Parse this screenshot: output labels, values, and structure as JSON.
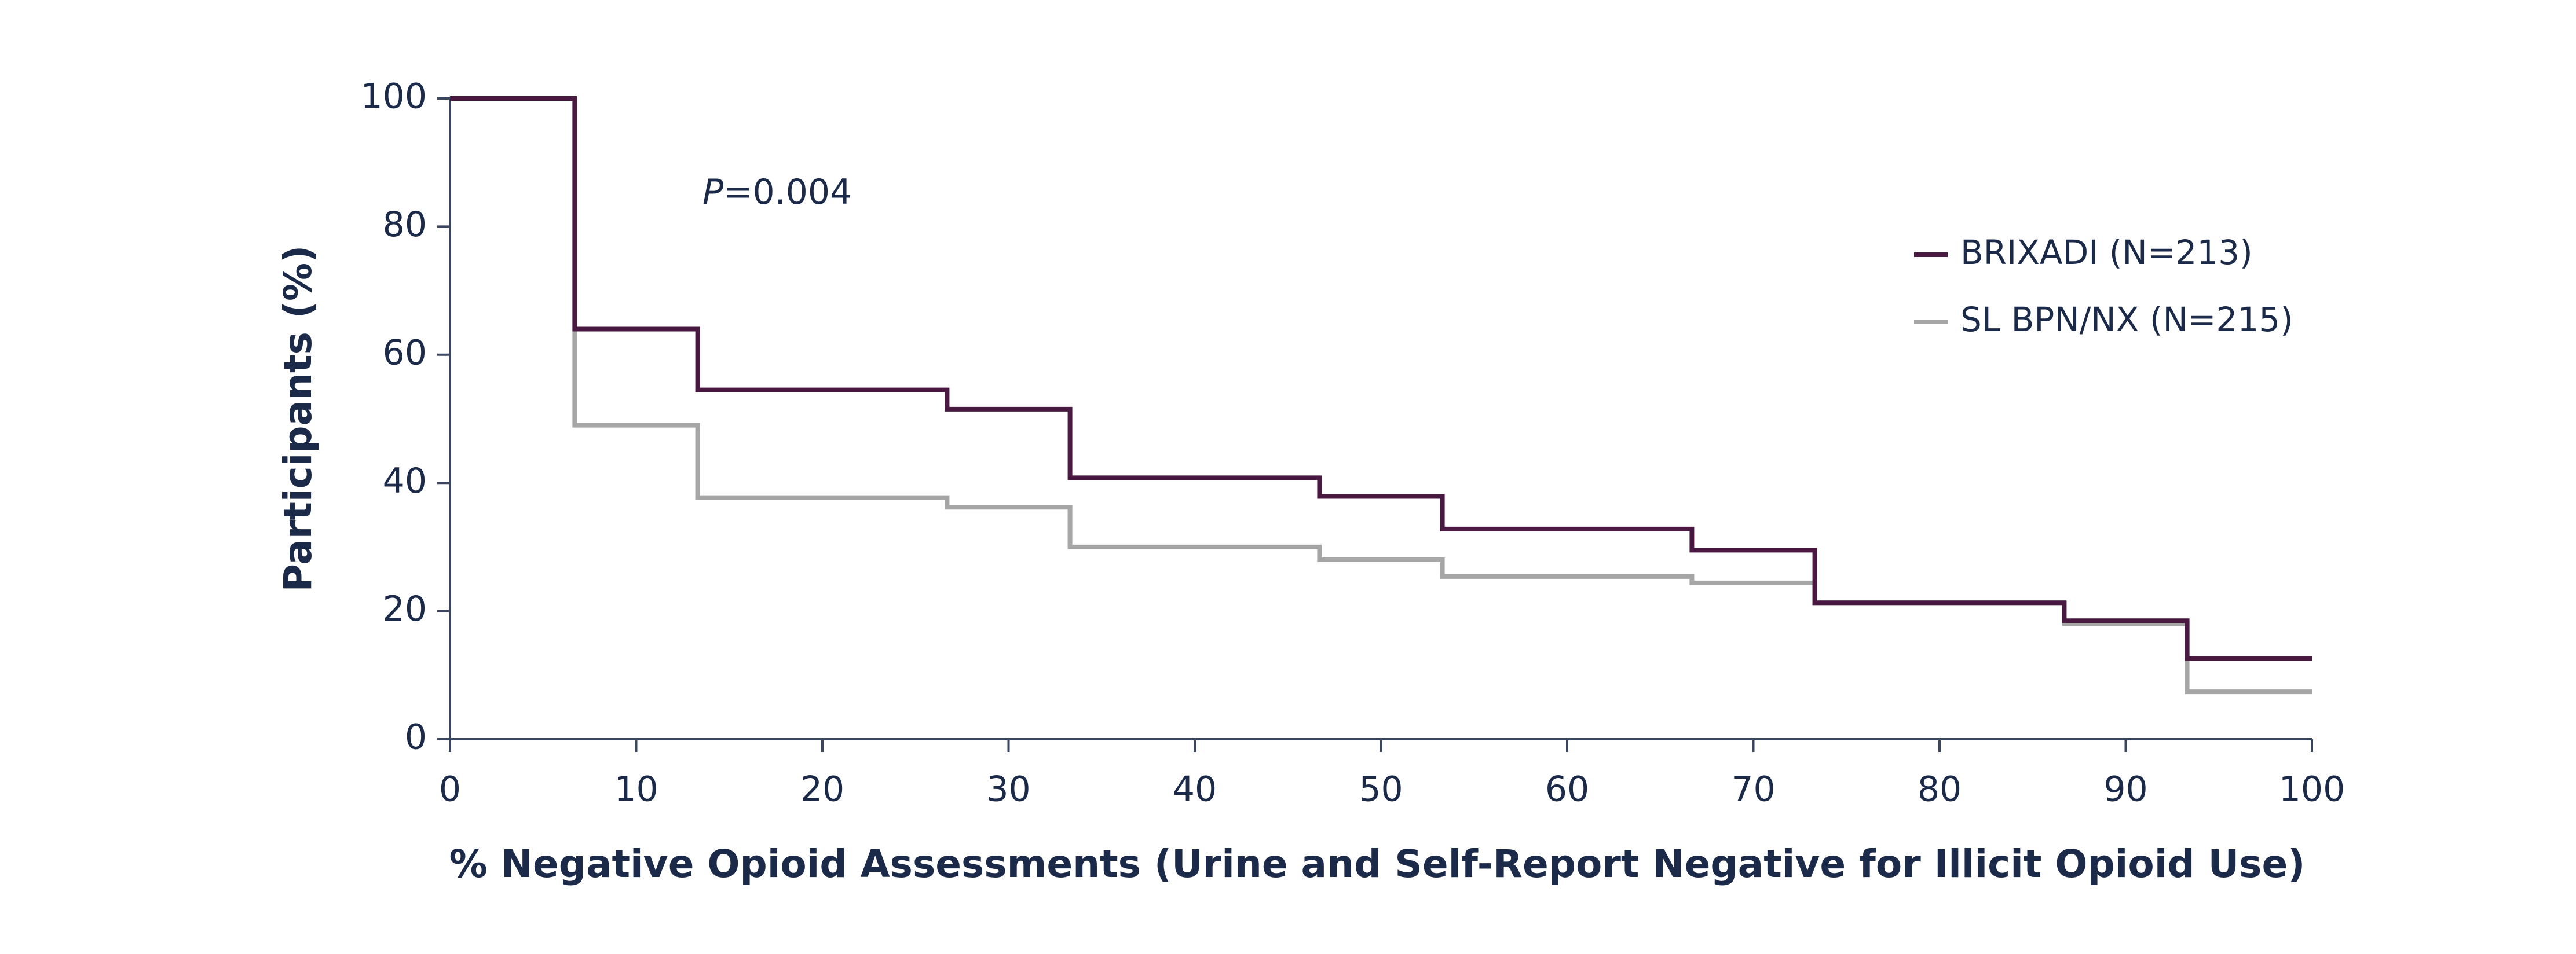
{
  "chart_data": {
    "type": "line",
    "step": "post",
    "annotation": "P=0.004",
    "x_label": "% Negative Opioid Assessments (Urine and Self-Report Negative for Illicit Opioid Use)",
    "y_label": "Participants (%)",
    "x": [
      0,
      6.7,
      13.3,
      26.7,
      33.3,
      46.7,
      53.3,
      66.7,
      73.3,
      86.7,
      93.3,
      100
    ],
    "series": [
      {
        "name": "BRIXADI (N=213)",
        "color": "#4a1942",
        "values": [
          100,
          64,
          54.5,
          51.5,
          40.8,
          37.9,
          32.8,
          29.5,
          21.3,
          18.5,
          12.6,
          12.6
        ]
      },
      {
        "name": "SL BPN/NX (N=215)",
        "color": "#a6a6a6",
        "values": [
          100,
          49,
          37.7,
          36.2,
          30,
          28,
          25.4,
          24.4,
          21.3,
          18,
          7.4,
          7.4
        ]
      }
    ],
    "xlim": [
      0,
      100
    ],
    "xticks": [
      0,
      10,
      20,
      30,
      40,
      50,
      60,
      70,
      80,
      90,
      100
    ],
    "ylim": [
      0,
      100
    ],
    "yticks": [
      0,
      20,
      40,
      60,
      80,
      100
    ],
    "grid": false,
    "legend": "upper right"
  }
}
